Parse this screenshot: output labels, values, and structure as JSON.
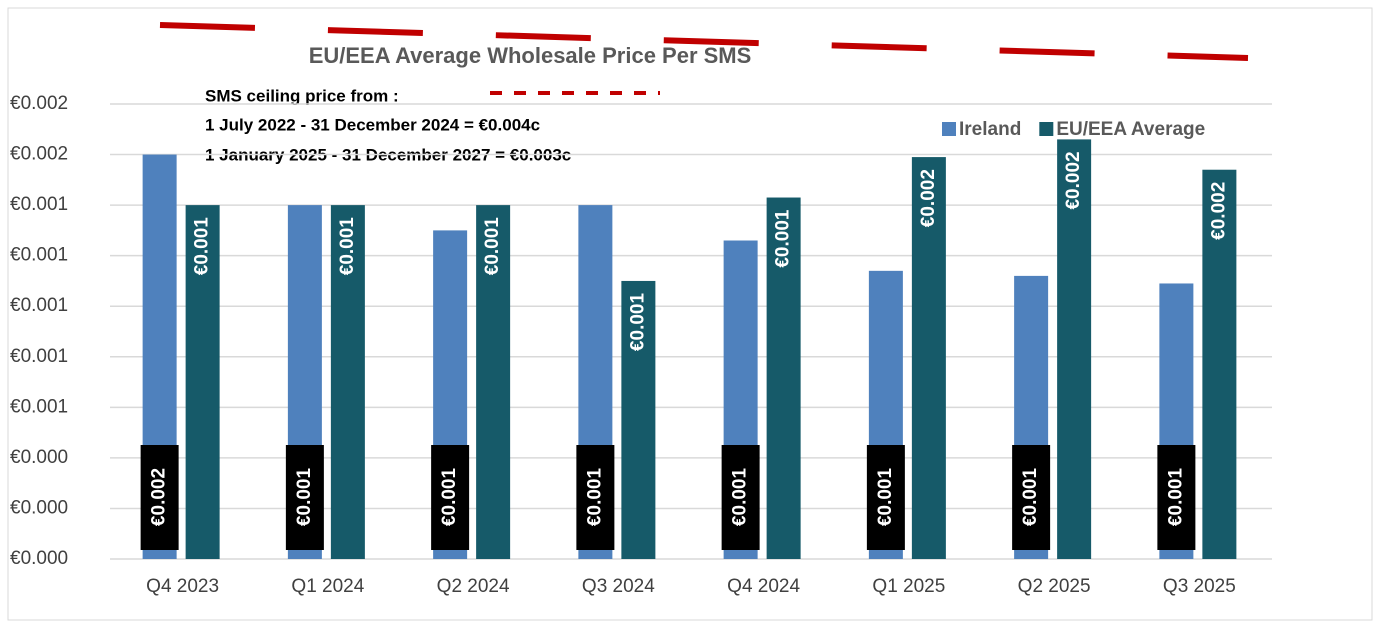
{
  "chart_data": {
    "type": "bar",
    "title": "EU/EEA Average Wholesale Price Per SMS",
    "annotations": [
      "SMS ceiling price from :",
      "1 July 2022 - 31 December 2024 = €0.004c",
      "1 January 2025 - 31 December 2027 = €0.003c"
    ],
    "categories": [
      "Q4 2023",
      "Q1 2024",
      "Q2 2024",
      "Q3 2024",
      "Q4 2024",
      "Q1 2025",
      "Q2 2025",
      "Q3 2025"
    ],
    "series": [
      {
        "name": "Ireland",
        "color": "#4f81bd",
        "values": [
          0.0016,
          0.0014,
          0.0013,
          0.0014,
          0.00126,
          0.00114,
          0.00112,
          0.00109
        ],
        "value_labels": [
          "€0.002",
          "€0.001",
          "€0.001",
          "€0.001",
          "€0.001",
          "€0.001",
          "€0.001",
          "€0.001"
        ]
      },
      {
        "name": "EU/EEA Average",
        "color": "#165a69",
        "values": [
          0.0014,
          0.0014,
          0.0014,
          0.0011,
          0.00143,
          0.00159,
          0.00166,
          0.00154
        ],
        "value_labels": [
          "€0.001",
          "€0.001",
          "€0.001",
          "€0.001",
          "€0.001",
          "€0.002",
          "€0.002",
          "€0.002"
        ]
      }
    ],
    "ylim": [
      0,
      0.0018
    ],
    "yticks": [
      {
        "value": 0,
        "label": "€0.000"
      },
      {
        "value": 0.0002,
        "label": "€0.000"
      },
      {
        "value": 0.0004,
        "label": "€0.000"
      },
      {
        "value": 0.0006,
        "label": "€0.001"
      },
      {
        "value": 0.0008,
        "label": "€0.001"
      },
      {
        "value": 0.001,
        "label": "€0.001"
      },
      {
        "value": 0.0012,
        "label": "€0.001"
      },
      {
        "value": 0.0014,
        "label": "€0.001"
      },
      {
        "value": 0.0016,
        "label": "€0.002"
      },
      {
        "value": 0.0018,
        "label": "€0.002"
      }
    ],
    "grid": true,
    "legend": "top-right"
  }
}
